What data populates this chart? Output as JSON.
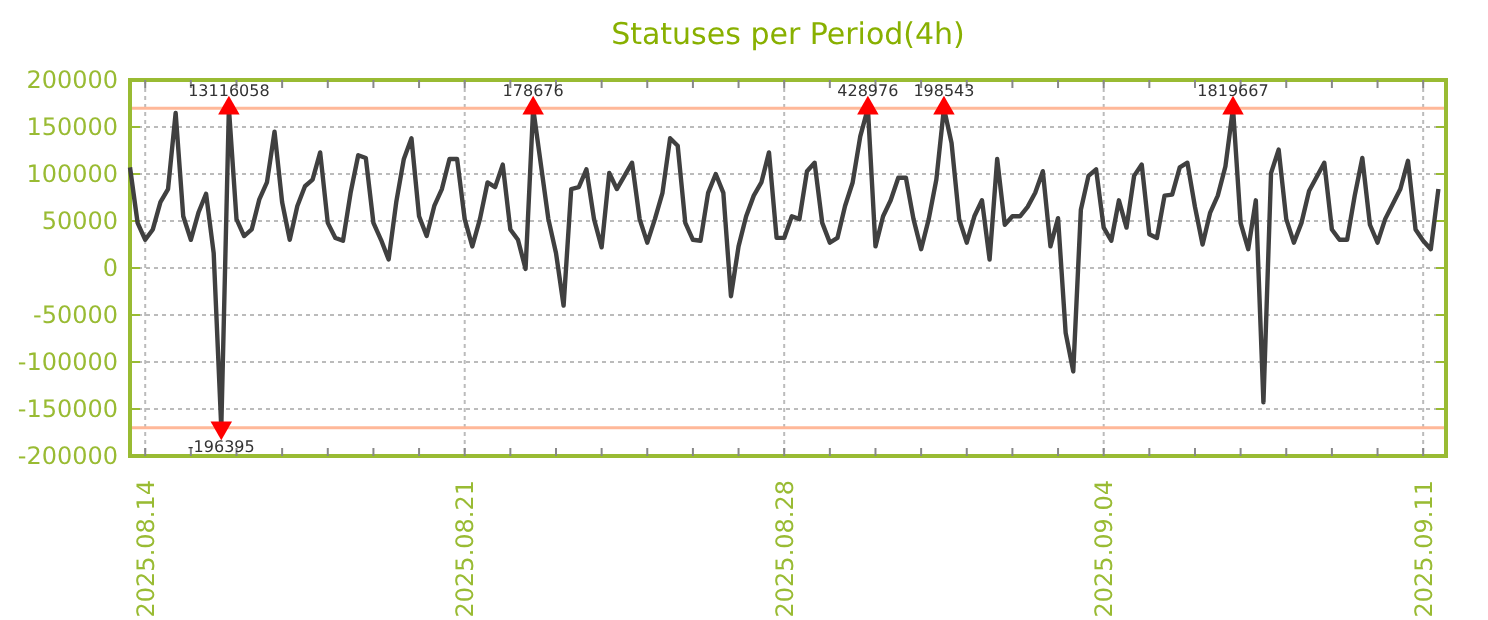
{
  "chart_data": {
    "type": "line",
    "title": "Statuses per Period(4h)",
    "xlim": [
      "2025-08-13T16:00",
      "2025-09-11T12:00"
    ],
    "xticks": [
      {
        "value": "2025-08-14",
        "label": "2025.08.14"
      },
      {
        "value": "2025-08-15",
        "label": null
      },
      {
        "value": "2025-08-16",
        "label": null
      },
      {
        "value": "2025-08-17",
        "label": null
      },
      {
        "value": "2025-08-18",
        "label": null
      },
      {
        "value": "2025-08-19",
        "label": null
      },
      {
        "value": "2025-08-20",
        "label": null
      },
      {
        "value": "2025-08-21",
        "label": "2025.08.21"
      },
      {
        "value": "2025-08-22",
        "label": null
      },
      {
        "value": "2025-08-23",
        "label": null
      },
      {
        "value": "2025-08-24",
        "label": null
      },
      {
        "value": "2025-08-25",
        "label": null
      },
      {
        "value": "2025-08-26",
        "label": null
      },
      {
        "value": "2025-08-27",
        "label": null
      },
      {
        "value": "2025-08-28",
        "label": "2025.08.28"
      },
      {
        "value": "2025-08-29",
        "label": null
      },
      {
        "value": "2025-08-30",
        "label": null
      },
      {
        "value": "2025-08-31",
        "label": null
      },
      {
        "value": "2025-09-01",
        "label": null
      },
      {
        "value": "2025-09-02",
        "label": null
      },
      {
        "value": "2025-09-03",
        "label": null
      },
      {
        "value": "2025-09-04",
        "label": "2025.09.04"
      },
      {
        "value": "2025-09-05",
        "label": null
      },
      {
        "value": "2025-09-06",
        "label": null
      },
      {
        "value": "2025-09-07",
        "label": null
      },
      {
        "value": "2025-09-08",
        "label": null
      },
      {
        "value": "2025-09-09",
        "label": null
      },
      {
        "value": "2025-09-10",
        "label": null
      },
      {
        "value": "2025-09-11",
        "label": "2025.09.11"
      }
    ],
    "ylim": [
      -200000,
      200000
    ],
    "yticks": [
      -200000,
      -150000,
      -100000,
      -50000,
      0,
      50000,
      100000,
      150000,
      200000
    ],
    "grid": true,
    "ref_lines": [
      {
        "axis": "y",
        "value": 170000,
        "color": "#ffb899"
      },
      {
        "axis": "y",
        "value": -170000,
        "color": "#ffb899"
      }
    ],
    "series": [
      {
        "color": "#404040",
        "marker": "none",
        "line_style": "solid",
        "x": [
          "2025-08-13T16:00",
          "2025-08-13T20:00",
          "2025-08-14T00:00",
          "2025-08-14T04:00",
          "2025-08-14T08:00",
          "2025-08-14T12:00",
          "2025-08-14T16:00",
          "2025-08-14T20:00",
          "2025-08-15T00:00",
          "2025-08-15T04:00",
          "2025-08-15T08:00",
          "2025-08-15T12:00",
          "2025-08-15T16:00",
          "2025-08-15T20:00",
          "2025-08-16T00:00",
          "2025-08-16T04:00",
          "2025-08-16T08:00",
          "2025-08-16T12:00",
          "2025-08-16T16:00",
          "2025-08-16T20:00",
          "2025-08-17T00:00",
          "2025-08-17T04:00",
          "2025-08-17T08:00",
          "2025-08-17T12:00",
          "2025-08-17T16:00",
          "2025-08-17T20:00",
          "2025-08-18T00:00",
          "2025-08-18T04:00",
          "2025-08-18T08:00",
          "2025-08-18T12:00",
          "2025-08-18T16:00",
          "2025-08-18T20:00",
          "2025-08-19T00:00",
          "2025-08-19T04:00",
          "2025-08-19T08:00",
          "2025-08-19T12:00",
          "2025-08-19T16:00",
          "2025-08-19T20:00",
          "2025-08-20T00:00",
          "2025-08-20T04:00",
          "2025-08-20T08:00",
          "2025-08-20T12:00",
          "2025-08-20T16:00",
          "2025-08-20T20:00",
          "2025-08-21T00:00",
          "2025-08-21T04:00",
          "2025-08-21T08:00",
          "2025-08-21T12:00",
          "2025-08-21T16:00",
          "2025-08-21T20:00",
          "2025-08-22T00:00",
          "2025-08-22T04:00",
          "2025-08-22T08:00",
          "2025-08-22T12:00",
          "2025-08-22T20:00",
          "2025-08-23T00:00",
          "2025-08-23T04:00",
          "2025-08-23T08:00",
          "2025-08-23T12:00",
          "2025-08-23T16:00",
          "2025-08-23T20:00",
          "2025-08-24T00:00",
          "2025-08-24T04:00",
          "2025-08-24T08:00",
          "2025-08-24T12:00",
          "2025-08-24T16:00",
          "2025-08-24T20:00",
          "2025-08-25T00:00",
          "2025-08-25T04:00",
          "2025-08-25T08:00",
          "2025-08-25T12:00",
          "2025-08-25T16:00",
          "2025-08-25T20:00",
          "2025-08-26T00:00",
          "2025-08-26T04:00",
          "2025-08-26T08:00",
          "2025-08-26T12:00",
          "2025-08-26T16:00",
          "2025-08-26T20:00",
          "2025-08-27T00:00",
          "2025-08-27T04:00",
          "2025-08-27T08:00",
          "2025-08-27T12:00",
          "2025-08-27T16:00",
          "2025-08-27T20:00",
          "2025-08-28T00:00",
          "2025-08-28T04:00",
          "2025-08-28T08:00",
          "2025-08-28T12:00",
          "2025-08-28T16:00",
          "2025-08-28T20:00",
          "2025-08-29T00:00",
          "2025-08-29T04:00",
          "2025-08-29T08:00",
          "2025-08-29T12:00",
          "2025-08-29T16:00",
          "2025-08-29T20:00",
          "2025-08-30T00:00",
          "2025-08-30T04:00",
          "2025-08-30T08:00",
          "2025-08-30T12:00",
          "2025-08-30T16:00",
          "2025-08-30T20:00",
          "2025-08-31T00:00",
          "2025-08-31T04:00",
          "2025-08-31T08:00",
          "2025-08-31T12:00",
          "2025-08-31T16:00",
          "2025-08-31T20:00",
          "2025-09-01T00:00",
          "2025-09-01T04:00",
          "2025-09-01T08:00",
          "2025-09-01T12:00",
          "2025-09-01T16:00",
          "2025-09-01T20:00",
          "2025-09-02T00:00",
          "2025-09-02T04:00",
          "2025-09-02T08:00",
          "2025-09-02T12:00",
          "2025-09-02T16:00",
          "2025-09-02T20:00",
          "2025-09-03T00:00",
          "2025-09-03T04:00",
          "2025-09-03T08:00",
          "2025-09-03T12:00",
          "2025-09-03T16:00",
          "2025-09-03T20:00",
          "2025-09-04T00:00",
          "2025-09-04T04:00",
          "2025-09-04T08:00",
          "2025-09-04T12:00",
          "2025-09-04T16:00",
          "2025-09-04T20:00",
          "2025-09-05T00:00",
          "2025-09-05T04:00",
          "2025-09-05T08:00",
          "2025-09-05T12:00",
          "2025-09-05T16:00",
          "2025-09-05T20:00",
          "2025-09-06T00:00",
          "2025-09-06T04:00",
          "2025-09-06T08:00",
          "2025-09-06T12:00",
          "2025-09-06T16:00",
          "2025-09-06T20:00",
          "2025-09-07T00:00",
          "2025-09-07T04:00",
          "2025-09-07T08:00",
          "2025-09-07T12:00",
          "2025-09-07T16:00",
          "2025-09-07T20:00",
          "2025-09-08T00:00",
          "2025-09-08T04:00",
          "2025-09-08T08:00",
          "2025-09-08T12:00",
          "2025-09-08T20:00",
          "2025-09-09T00:00",
          "2025-09-09T04:00",
          "2025-09-09T08:00",
          "2025-09-09T12:00",
          "2025-09-09T16:00",
          "2025-09-09T20:00",
          "2025-09-10T00:00",
          "2025-09-10T04:00",
          "2025-09-10T12:00",
          "2025-09-10T16:00",
          "2025-09-10T20:00",
          "2025-09-11T00:00",
          "2025-09-11T04:00",
          "2025-09-11T08:00"
        ],
        "values": [
          107000,
          48000,
          30000,
          41000,
          70000,
          84000,
          165000,
          55000,
          30000,
          59000,
          79000,
          16000,
          -170000,
          170000,
          52000,
          34000,
          41000,
          73000,
          91000,
          145000,
          70000,
          30000,
          66000,
          87000,
          94000,
          123000,
          48000,
          32000,
          29000,
          80000,
          120000,
          117000,
          48000,
          30000,
          9000,
          70000,
          116000,
          138000,
          55000,
          34000,
          66000,
          84000,
          116000,
          116000,
          52000,
          23000,
          52000,
          91000,
          86000,
          110000,
          41000,
          30000,
          -1000,
          170000,
          52000,
          16000,
          -40000,
          84000,
          86000,
          105000,
          52000,
          22000,
          101000,
          84000,
          98000,
          112000,
          52000,
          27000,
          52000,
          80000,
          138000,
          130000,
          48000,
          30000,
          29000,
          80000,
          100000,
          80000,
          -30000,
          23000,
          55000,
          77000,
          91000,
          123000,
          32000,
          32000,
          55000,
          52000,
          103000,
          112000,
          48000,
          27000,
          32000,
          66000,
          91000,
          140000,
          170000,
          23000,
          55000,
          72000,
          96000,
          96000,
          52000,
          20000,
          52000,
          94000,
          170000,
          133000,
          52000,
          27000,
          55000,
          72000,
          9000,
          116000,
          46000,
          55000,
          55000,
          65000,
          80000,
          103000,
          23000,
          53000,
          -69000,
          -110000,
          62000,
          98000,
          105000,
          43000,
          29000,
          72000,
          43000,
          98000,
          110000,
          36000,
          32000,
          77000,
          78000,
          107000,
          112000,
          65000,
          25000,
          59000,
          77000,
          108000,
          170000,
          48000,
          20000,
          72000,
          -143000,
          101000,
          126000,
          52000,
          27000,
          48000,
          82000,
          112000,
          41000,
          30000,
          30000,
          77000,
          117000,
          46000,
          27000,
          52000,
          84000,
          114000,
          41000,
          29000,
          20000,
          84000
        ]
      },
      {
        "type": "scatter",
        "color": "#ff0000",
        "marker": "triangle",
        "x": [
          "2025-08-15T20:00",
          "2025-08-15T16:00",
          "2025-08-22T12:00",
          "2025-08-29T20:00",
          "2025-08-31T12:00",
          "2025-09-06T20:00"
        ],
        "values": [
          170000,
          -170000,
          170000,
          170000,
          170000,
          170000
        ]
      }
    ],
    "annotations": [
      {
        "text": "13116058",
        "x": "2025-08-15T20:00",
        "y": 170000
      },
      {
        "text": "-196395",
        "x": "2025-08-15T16:00",
        "y": -170000
      },
      {
        "text": "178676",
        "x": "2025-08-22T12:00",
        "y": 170000
      },
      {
        "text": "428976",
        "x": "2025-08-29T20:00",
        "y": 170000
      },
      {
        "text": "198543",
        "x": "2025-08-31T12:00",
        "y": 170000
      },
      {
        "text": "1819667",
        "x": "2025-09-06T20:00",
        "y": 170000
      }
    ]
  }
}
